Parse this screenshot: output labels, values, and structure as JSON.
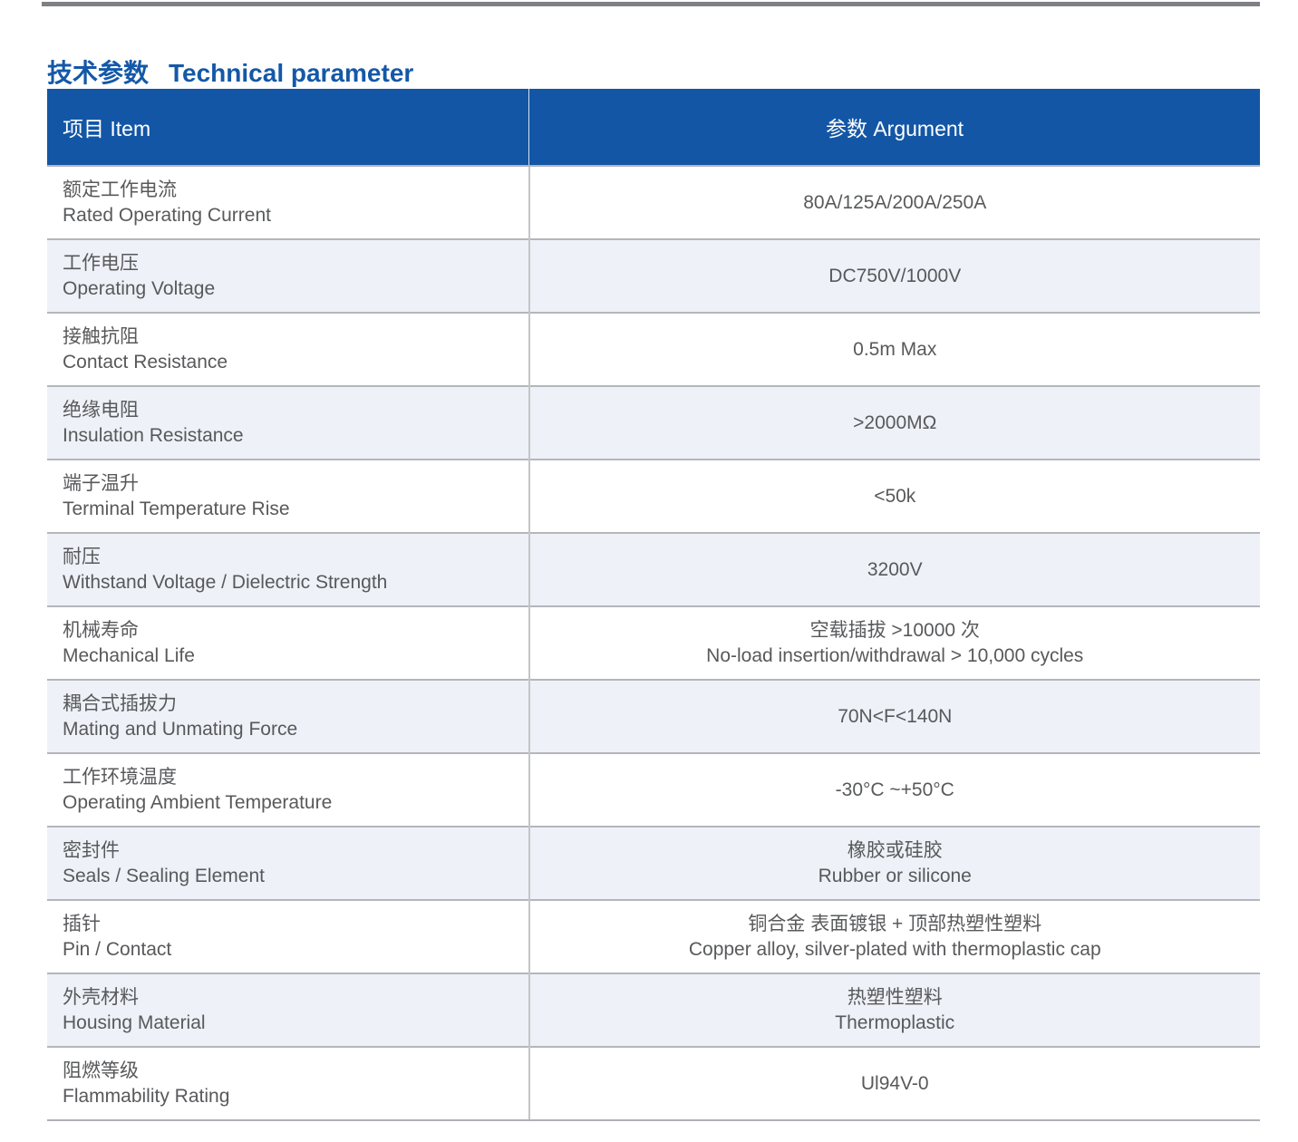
{
  "title": {
    "zh": "技术参数",
    "en": "Technical parameter"
  },
  "table": {
    "header": {
      "item": "项目 Item",
      "argument": "参数 Argument"
    },
    "rows": [
      {
        "item_zh": "额定工作电流",
        "item_en": "Rated Operating Current",
        "value_lines": [
          "80A/125A/200A/250A"
        ]
      },
      {
        "item_zh": "工作电压",
        "item_en": "Operating Voltage",
        "value_lines": [
          "DC750V/1000V"
        ]
      },
      {
        "item_zh": "接触抗阻",
        "item_en": "Contact Resistance",
        "value_lines": [
          "0.5m Max"
        ]
      },
      {
        "item_zh": "绝缘电阻",
        "item_en": "Insulation Resistance",
        "value_lines": [
          ">2000MΩ"
        ]
      },
      {
        "item_zh": "端子温升",
        "item_en": "Terminal Temperature Rise",
        "value_lines": [
          "<50k"
        ]
      },
      {
        "item_zh": "耐压",
        "item_en": "Withstand Voltage / Dielectric Strength",
        "value_lines": [
          "3200V"
        ]
      },
      {
        "item_zh": "机械寿命",
        "item_en": "Mechanical Life",
        "value_lines": [
          "空载插拔 >10000 次",
          "No-load insertion/withdrawal > 10,000 cycles"
        ]
      },
      {
        "item_zh": "耦合式插拔力",
        "item_en": "Mating and Unmating Force",
        "value_lines": [
          "70N<F<140N"
        ]
      },
      {
        "item_zh": "工作环境温度",
        "item_en": "Operating Ambient Temperature",
        "value_lines": [
          "-30°C ~+50°C"
        ]
      },
      {
        "item_zh": "密封件",
        "item_en": "Seals / Sealing Element",
        "value_lines": [
          "橡胶或硅胶",
          "Rubber or silicone"
        ]
      },
      {
        "item_zh": "插针",
        "item_en": "Pin / Contact",
        "value_lines": [
          "铜合金 表面镀银 + 顶部热塑性塑料",
          "Copper alloy, silver-plated with thermoplastic cap"
        ]
      },
      {
        "item_zh": "外壳材料",
        "item_en": "Housing Material",
        "value_lines": [
          "热塑性塑料",
          "Thermoplastic"
        ]
      },
      {
        "item_zh": "阻燃等级",
        "item_en": "Flammability Rating",
        "value_lines": [
          "Ul94V-0"
        ]
      }
    ]
  },
  "colors": {
    "header_bg": "#1356a5",
    "header_text": "#ffffff",
    "title_text": "#1458a8",
    "row_alt_bg": "#eef1f7",
    "body_text": "#58595b",
    "row_border": "#b3b6ba",
    "column_divider": "#c3c5c8",
    "top_rule": "#7e8083"
  }
}
